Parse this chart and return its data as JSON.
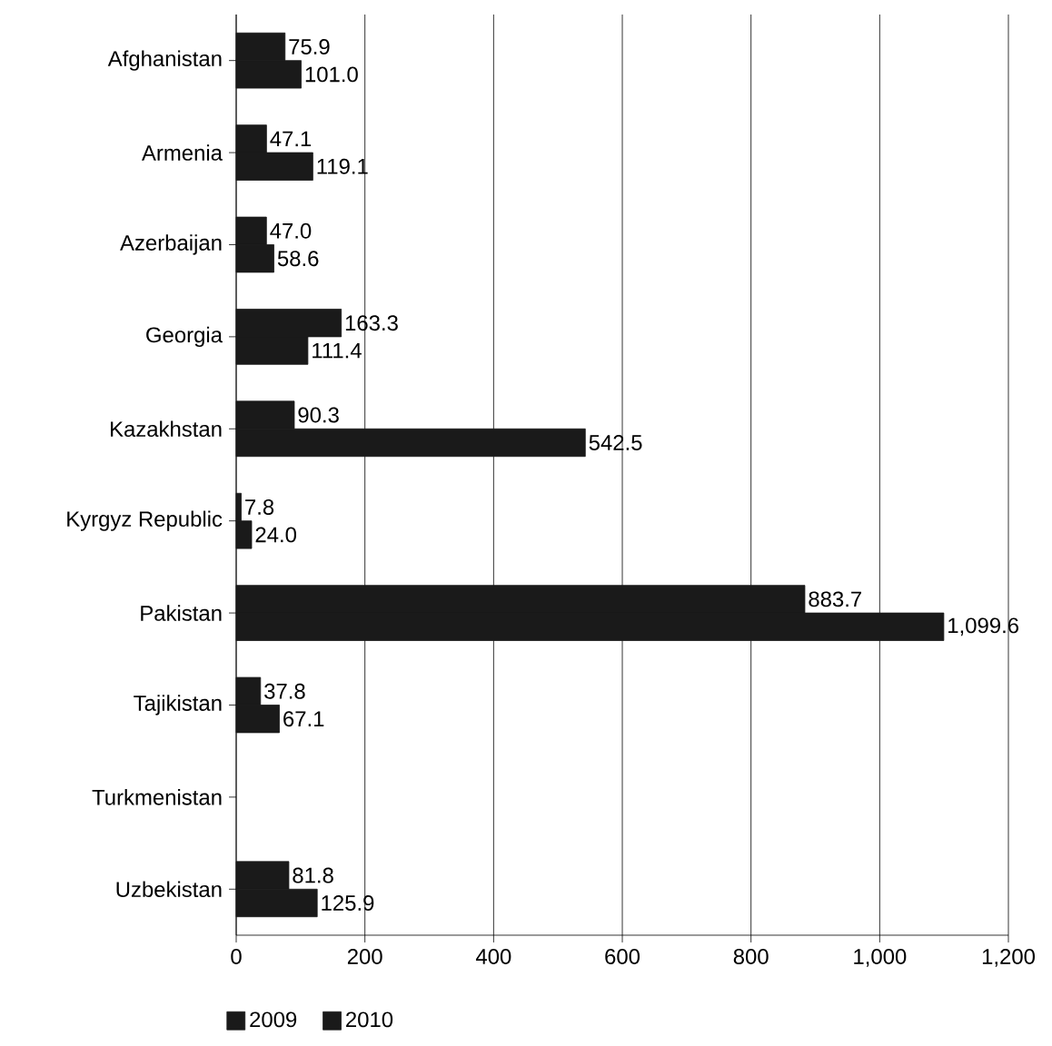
{
  "chart_data": {
    "type": "bar",
    "orientation": "horizontal",
    "categories": [
      "Afghanistan",
      "Armenia",
      "Azerbaijan",
      "Georgia",
      "Kazakhstan",
      "Kyrgyz Republic",
      "Pakistan",
      "Tajikistan",
      "Turkmenistan",
      "Uzbekistan"
    ],
    "series": [
      {
        "name": "2009",
        "color": "#1a1a1a",
        "values": [
          75.9,
          47.1,
          47.0,
          163.3,
          90.3,
          7.8,
          883.7,
          37.8,
          null,
          81.8
        ],
        "value_labels": [
          "75.9",
          "47.1",
          "47.0",
          "163.3",
          "90.3",
          "7.8",
          "883.7",
          "37.8",
          null,
          "81.8"
        ]
      },
      {
        "name": "2010",
        "color": "#1a1a1a",
        "values": [
          101.0,
          119.1,
          58.6,
          111.4,
          542.5,
          24.0,
          1099.6,
          67.1,
          null,
          125.9
        ],
        "value_labels": [
          "101.0",
          "119.1",
          "58.6",
          "111.4",
          "542.5",
          "24.0",
          "1,099.6",
          "67.1",
          null,
          "125.9"
        ]
      }
    ],
    "xlim": [
      0,
      1200
    ],
    "xticks": [
      0,
      200,
      400,
      600,
      800,
      {
        "value": 1000,
        "label": "1,000"
      },
      {
        "value": 1200,
        "label": "1,200"
      }
    ],
    "grid": "x",
    "legend": "bottom left"
  }
}
